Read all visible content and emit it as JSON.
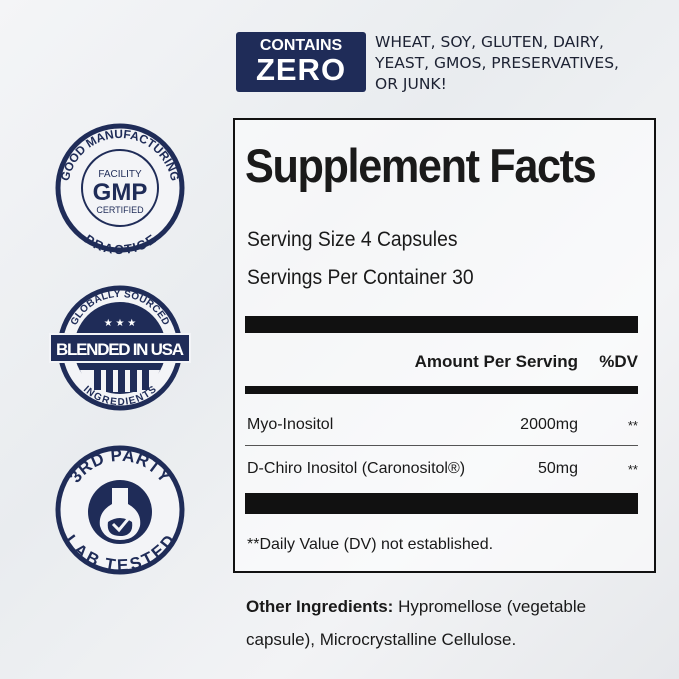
{
  "zero_badge": {
    "line1": "CONTAINS",
    "line2": "ZERO",
    "text_lines": [
      "WHEAT, SOY, GLUTEN, DAIRY,",
      "YEAST, GMOS, PRESERVATIVES,",
      "OR JUNK!"
    ]
  },
  "badges": {
    "gmp": {
      "top": "GOOD MANUFACTURING",
      "bottom": "PRACTICE",
      "line1": "FACILITY",
      "line2": "GMP",
      "line3": "CERTIFIED"
    },
    "usa": {
      "top": "GLOBALLY SOURCED",
      "banner": "BLENDED IN USA",
      "bottom": "INGREDIENTS"
    },
    "lab": {
      "top": "3RD PARTY",
      "bottom": "LAB TESTED",
      "icon": "flask-check-icon"
    }
  },
  "facts": {
    "title": "Supplement Facts",
    "serving_size": "Serving Size 4 Capsules",
    "servings_per_container": "Servings Per Container 30",
    "col_amount": "Amount Per Serving",
    "col_dv": "%DV",
    "rows": [
      {
        "name": "Myo-Inositol",
        "amount": "2000mg",
        "dv": "**"
      },
      {
        "name": "D-Chiro Inositol (Caronositol®)",
        "amount": "50mg",
        "dv": "**"
      }
    ],
    "footnote": "**Daily Value (DV) not established."
  },
  "other": {
    "label": "Other Ingredients:",
    "text": " Hypromellose (vegetable capsule), Microcrystalline Cellulose."
  },
  "colors": {
    "navy": "#1f2c58",
    "text": "#1a1a1a"
  }
}
